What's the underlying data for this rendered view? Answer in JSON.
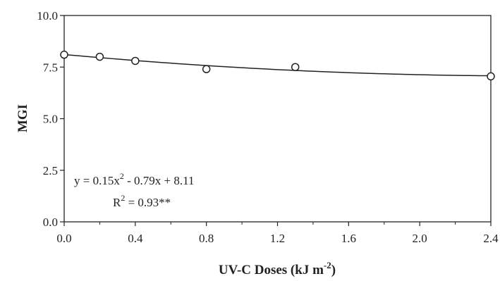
{
  "chart_data": {
    "type": "scatter",
    "xlabel": "UV-C Doses (kJ m",
    "xlabel_sup": "-2",
    "xlabel_suffix": ")",
    "ylabel": "MGI",
    "xlim": [
      0.0,
      2.4
    ],
    "ylim": [
      0.0,
      10.0
    ],
    "x_ticks": [
      "0.0",
      "0.4",
      "0.8",
      "1.2",
      "1.6",
      "2.0",
      "2.4"
    ],
    "y_ticks": [
      "0.0",
      "2.5",
      "5.0",
      "7.5",
      "10.0"
    ],
    "grid": false,
    "legend": "none",
    "points": {
      "x": [
        0.0,
        0.2,
        0.4,
        0.8,
        1.3,
        2.4
      ],
      "y": [
        8.1,
        8.0,
        7.8,
        7.4,
        7.5,
        7.05
      ]
    },
    "fit": {
      "type": "quadratic",
      "a": 0.15,
      "b": -0.79,
      "c": 8.11
    },
    "annotations": {
      "equation_prefix": "y = 0.15x",
      "equation_sup": "2",
      "equation_suffix": " - 0.79x + 8.11",
      "r2_prefix": "R",
      "r2_sup": "2",
      "r2_suffix": " = 0.93**"
    }
  }
}
